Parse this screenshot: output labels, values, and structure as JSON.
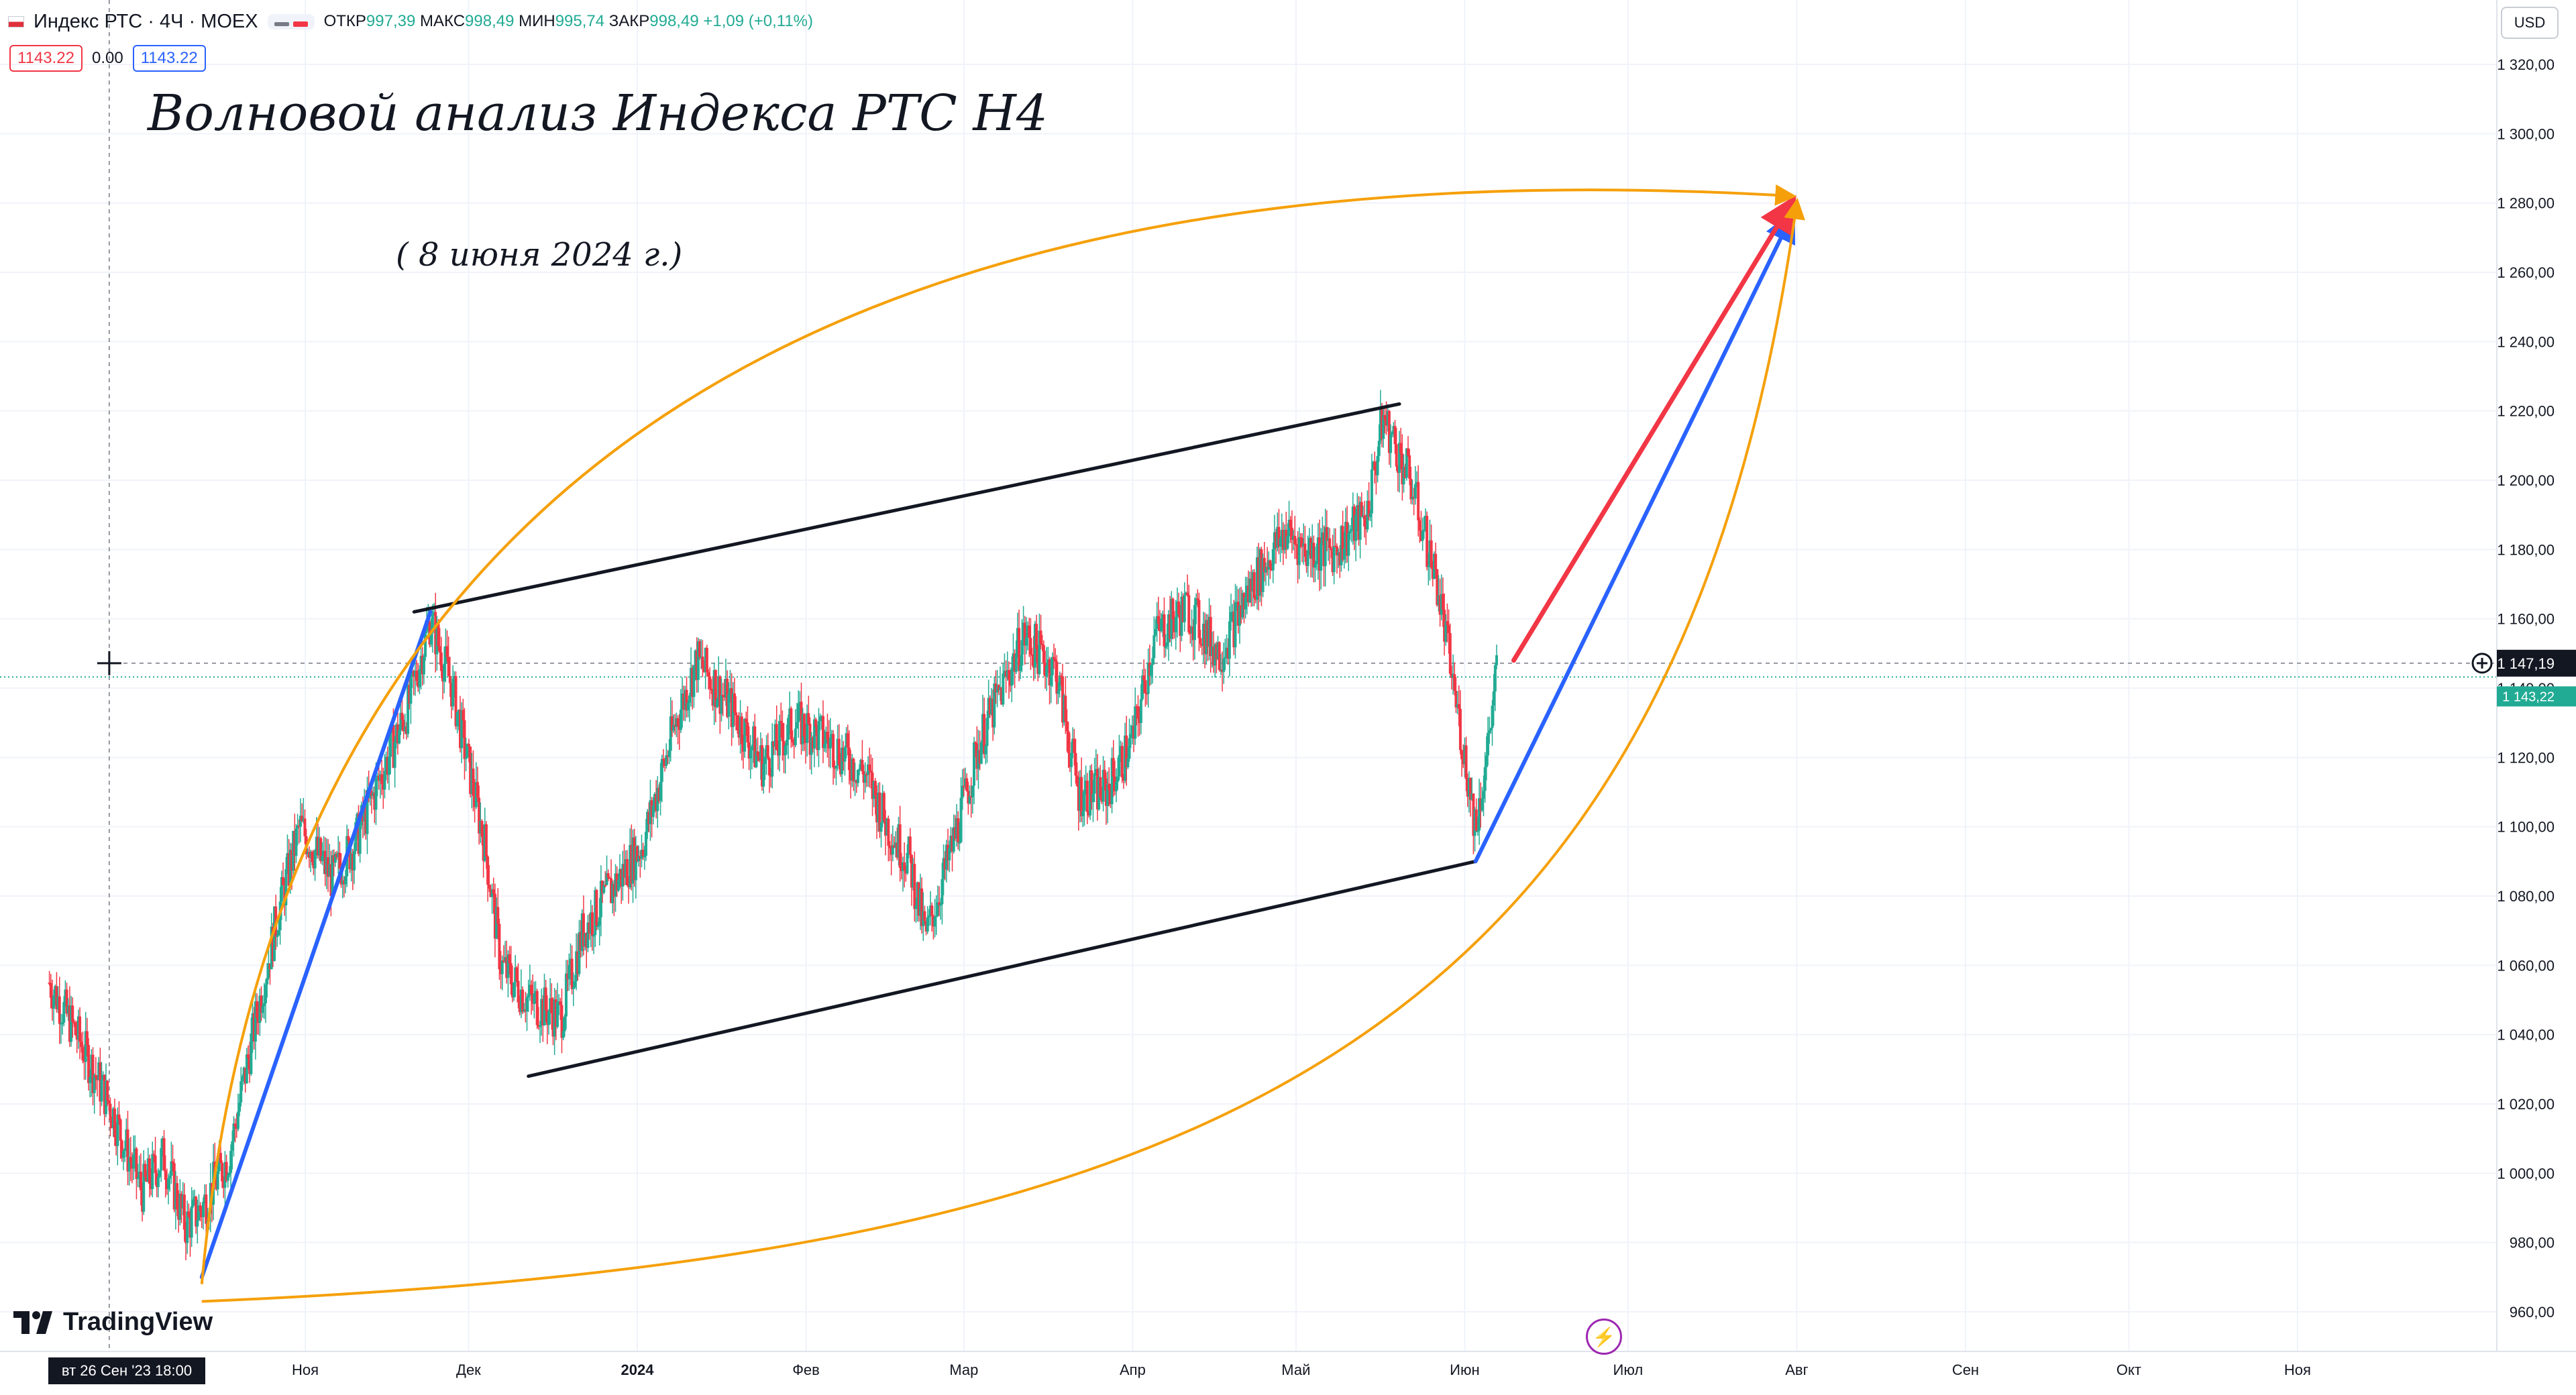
{
  "header": {
    "symbol": "Индекс РТС · 4Ч · MOEX",
    "open_label": "ОТКР",
    "open": "997,39",
    "high_label": "МАКС",
    "high": "998,49",
    "low_label": "МИН",
    "low": "995,74",
    "close_label": "ЗАКР",
    "close": "998,49",
    "change": "+1,09 (+0,11%)"
  },
  "trade": {
    "sell": "1143.22",
    "spread": "0.00",
    "buy": "1143.22"
  },
  "currency": "USD",
  "brand": "TradingView",
  "annotations": {
    "title": "Волновой анализ Индекса РТС Н4",
    "date": "( 8 июня 2024 г.)"
  },
  "crosshair": {
    "x_label": "вт 26 Сен '23   18:00"
  },
  "colors": {
    "up": "#22ab94",
    "down": "#f23645",
    "orange": "#f5a00a",
    "blue": "#2962ff",
    "red": "#f23645",
    "black": "#131722",
    "grid": "#f0f3fa"
  },
  "chart_data": {
    "type": "candlestick",
    "title": "Индекс РТС · 4Ч · MOEX",
    "yaxis": {
      "min": 960,
      "max": 1330,
      "ticks": [
        960,
        980,
        1000,
        1020,
        1040,
        1060,
        1080,
        1100,
        1120,
        1140,
        1160,
        1180,
        1200,
        1220,
        1240,
        1260,
        1280,
        1300,
        1320
      ],
      "label_format": "1 000,00"
    },
    "x_ticks": [
      "Ноя",
      "Дек",
      "2024",
      "Фев",
      "Мар",
      "Апр",
      "Май",
      "Июн",
      "Июл",
      "Авг",
      "Сен",
      "Окт",
      "Ноя"
    ],
    "price_scale_labels": {
      "last": "1 147,19",
      "other": "1 143,22"
    },
    "grid": true,
    "price_path": [
      [
        "2023-09-15",
        1055
      ],
      [
        "2023-09-20",
        1040
      ],
      [
        "2023-09-26",
        1020
      ],
      [
        "2023-10-02",
        995
      ],
      [
        "2023-10-06",
        1005
      ],
      [
        "2023-10-10",
        985
      ],
      [
        "2023-10-13",
        990
      ],
      [
        "2023-10-18",
        1005
      ],
      [
        "2023-10-23",
        1045
      ],
      [
        "2023-10-27",
        1075
      ],
      [
        "2023-10-31",
        1100
      ],
      [
        "2023-11-06",
        1085
      ],
      [
        "2023-11-10",
        1095
      ],
      [
        "2023-11-15",
        1115
      ],
      [
        "2023-11-20",
        1135
      ],
      [
        "2023-11-24",
        1160
      ],
      [
        "2023-11-28",
        1140
      ],
      [
        "2023-12-04",
        1095
      ],
      [
        "2023-12-07",
        1060
      ],
      [
        "2023-12-12",
        1050
      ],
      [
        "2023-12-18",
        1045
      ],
      [
        "2023-12-22",
        1070
      ],
      [
        "2024-01-02",
        1095
      ],
      [
        "2024-01-08",
        1130
      ],
      [
        "2024-01-12",
        1148
      ],
      [
        "2024-01-18",
        1135
      ],
      [
        "2024-01-24",
        1118
      ],
      [
        "2024-01-30",
        1130
      ],
      [
        "2024-02-05",
        1125
      ],
      [
        "2024-02-12",
        1115
      ],
      [
        "2024-02-16",
        1100
      ],
      [
        "2024-02-20",
        1090
      ],
      [
        "2024-02-23",
        1068
      ],
      [
        "2024-02-28",
        1095
      ],
      [
        "2024-03-04",
        1125
      ],
      [
        "2024-03-08",
        1140
      ],
      [
        "2024-03-12",
        1155
      ],
      [
        "2024-03-18",
        1145
      ],
      [
        "2024-03-22",
        1110
      ],
      [
        "2024-03-27",
        1110
      ],
      [
        "2024-04-01",
        1125
      ],
      [
        "2024-04-05",
        1155
      ],
      [
        "2024-04-11",
        1163
      ],
      [
        "2024-04-17",
        1150
      ],
      [
        "2024-04-23",
        1170
      ],
      [
        "2024-04-29",
        1185
      ],
      [
        "2024-05-03",
        1180
      ],
      [
        "2024-05-08",
        1180
      ],
      [
        "2024-05-14",
        1190
      ],
      [
        "2024-05-17",
        1218
      ],
      [
        "2024-05-22",
        1200
      ],
      [
        "2024-05-27",
        1170
      ],
      [
        "2024-05-30",
        1140
      ],
      [
        "2024-06-03",
        1100
      ],
      [
        "2024-06-05",
        1120
      ],
      [
        "2024-06-07",
        1147
      ]
    ],
    "lines": [
      {
        "name": "upper-channel",
        "from": [
          "2023-11-21",
          1162
        ],
        "to": [
          "2024-05-20",
          1222
        ]
      },
      {
        "name": "lower-channel",
        "from": [
          "2023-12-12",
          1028
        ],
        "to": [
          "2024-06-03",
          1090
        ]
      },
      {
        "name": "impulse-1",
        "from": [
          "2023-10-13",
          970
        ],
        "to": [
          "2023-11-24",
          1162
        ]
      },
      {
        "name": "target-blue",
        "from": [
          "2024-06-03",
          1090
        ],
        "to": [
          "2024-07-31",
          1276
        ]
      },
      {
        "name": "target-red",
        "from": [
          "2024-06-10",
          1148
        ],
        "to": [
          "2024-07-31",
          1280
        ]
      }
    ]
  }
}
